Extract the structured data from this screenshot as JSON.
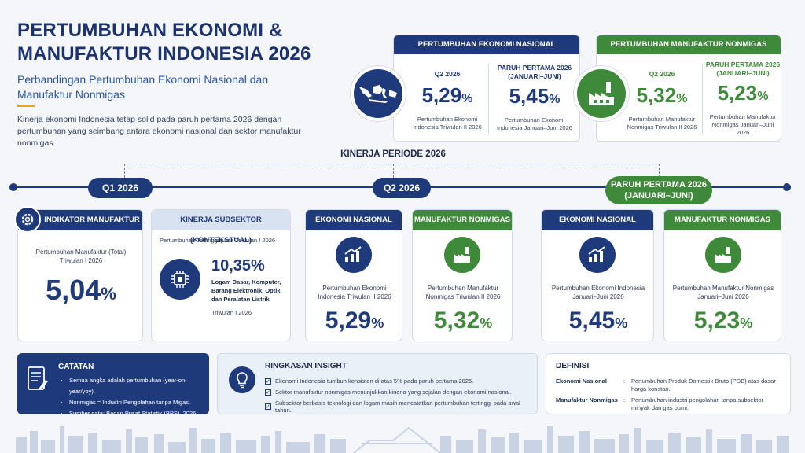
{
  "header": {
    "title": "PERTUMBUHAN EKONOMI & MANUFAKTUR INDONESIA 2026",
    "subtitle": "Perbandingan Pertumbuhan Ekonomi Nasional dan Manufaktur Nonmigas",
    "intro": "Kinerja ekonomi Indonesia tetap solid pada paruh pertama 2026 dengan pertumbuhan yang seimbang antara ekonomi nasional dan sektor manufaktur nonmigas."
  },
  "top_national": {
    "heading": "PERTUMBUHAN EKONOMI NASIONAL",
    "q2_label": "Q2 2026",
    "q2_value": "5,29",
    "q2_desc": "Pertumbuhan Ekonomi Indonesia Triwulan II 2026",
    "h1_label": "PARUH PERTAMA 2026 (JANUARI–JUNI)",
    "h1_value": "5,45",
    "h1_desc": "Pertumbuhan Ekonomi Indonesia Januari–Juni 2026",
    "map_icon": "indonesia-map-icon"
  },
  "top_manufacturing": {
    "heading": "PERTUMBUHAN MANUFAKTUR NONMIGAS",
    "q2_label": "Q2 2026",
    "q2_value": "5,32",
    "q2_desc": "Pertumbuhan Manufaktur Nonmigas Triwulan II 2026",
    "h1_label": "PARUH PERTAMA 2026 (JANUARI–JUNI)",
    "h1_value": "5,23",
    "h1_desc": "Pertumbuhan Manufaktur Nonmigas Januari–Juni 2026",
    "factory_icon": "factory-icon"
  },
  "percent": "%",
  "timeline": {
    "title": "KINERJA PERIODE 2026",
    "q1": "Q1 2026",
    "q2": "Q2 2026",
    "h1": "PARUH PERTAMA 2026 (JANUARI–JUNI)"
  },
  "q1_cards": {
    "indicator": {
      "heading": "INDIKATOR MANUFAKTUR",
      "desc": "Pertumbuhan Manufaktur (Total) Triwulan I 2026",
      "value": "5,04"
    },
    "subsector": {
      "heading": "KINERJA SUBSEKTOR (KONTEKSTUAL)",
      "caption": "Pertumbuhan Tertinggi pada Triwulan I 2026",
      "value": "10,35%",
      "name": "Logam Dasar, Komputer, Barang Elektronik, Optik, dan Peralatan Listrik",
      "period": "Triwulan I 2026"
    }
  },
  "q2_cards": [
    {
      "heading": "EKONOMI NASIONAL",
      "desc": "Pertumbuhan Ekonomi Indonesia Triwulan II 2026",
      "value": "5,29"
    },
    {
      "heading": "MANUFAKTUR NONMIGAS",
      "desc": "Pertumbuhan Manufaktur Nonmigas Triwulan II 2026",
      "value": "5,32"
    }
  ],
  "h1_cards": [
    {
      "heading": "EKONOMI NASIONAL",
      "desc": "Pertumbuhan Ekonomi Indonesia Januari–Juni 2026",
      "value": "5,45"
    },
    {
      "heading": "MANUFAKTUR NONMIGAS",
      "desc": "Pertumbuhan Manufaktur Nonmigas Januari–Juni 2026",
      "value": "5,23"
    }
  ],
  "catatan": {
    "title": "CATATAN",
    "items": [
      "Semua angka adalah pertumbuhan (year-on-year/yoy).",
      "Nonmigas = Industri Pengolahan tanpa Migas.",
      "Sumber data: Badan Pusat Statistik (BPS), 2026."
    ]
  },
  "insight": {
    "title": "RINGKASAN INSIGHT",
    "items": [
      "Ekonomi Indonesia tumbuh konsisten di atas 5% pada paruh pertama 2026.",
      "Sektor manufaktur nonmigas menunjukkan kinerja yang sejalan dengan ekonomi nasional.",
      "Subsektor berbasis teknologi dan logam masih mencatatkan pertumbuhan tertinggi pada awal tahun."
    ]
  },
  "definisi": {
    "title": "DEFINISI",
    "terms": [
      {
        "term": "Ekonomi Nasional",
        "text": "Pertumbuhan Produk Domestik Bruto (PDB) atas dasar harga konstan."
      },
      {
        "term": "Manufaktur Nonmigas",
        "text": "Pertumbuhan industri pengolahan tanpa subsektor minyak dan gas bumi."
      }
    ]
  },
  "colors": {
    "navy": "#1f3a7a",
    "green": "#3f8a3a",
    "accent": "#e2a52b"
  }
}
